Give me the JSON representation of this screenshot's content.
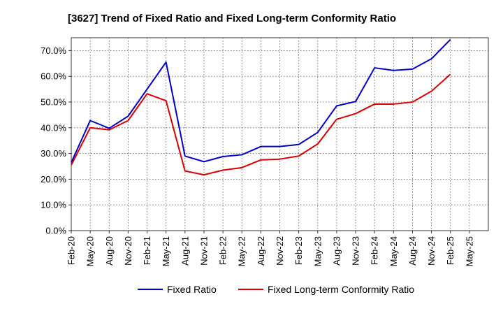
{
  "chart_data": {
    "type": "line",
    "title": "[3627]  Trend of Fixed Ratio and Fixed Long-term Conformity Ratio",
    "xlabel": "",
    "ylabel": "",
    "ylim": [
      0,
      75
    ],
    "grid": true,
    "legend_position": "bottom",
    "x_tick_labels": [
      "Feb-20",
      "May-20",
      "Aug-20",
      "Nov-20",
      "Feb-21",
      "May-21",
      "Aug-21",
      "Nov-21",
      "Feb-22",
      "May-22",
      "Aug-22",
      "Nov-22",
      "Feb-23",
      "May-23",
      "Aug-23",
      "Nov-23",
      "Feb-24",
      "May-24",
      "Aug-24",
      "Nov-24",
      "Feb-25",
      "May-25"
    ],
    "y_ticks": [
      0,
      10,
      20,
      30,
      40,
      50,
      60,
      70
    ],
    "y_tick_labels": [
      "0.0%",
      "10.0%",
      "20.0%",
      "30.0%",
      "40.0%",
      "50.0%",
      "60.0%",
      "70.0%"
    ],
    "x": [
      "Feb-20",
      "May-20",
      "Aug-20",
      "Nov-20",
      "Feb-21",
      "May-21",
      "Aug-21",
      "Nov-21",
      "Feb-22",
      "May-22",
      "Aug-22",
      "Nov-22",
      "Feb-23",
      "May-23",
      "Aug-23",
      "Nov-23",
      "Feb-24",
      "May-24",
      "Aug-24",
      "Nov-24",
      "Feb-25"
    ],
    "series": [
      {
        "name": "Fixed Ratio",
        "color": "#0000cc",
        "values": [
          26.5,
          42.8,
          39.8,
          44.5,
          55.0,
          65.5,
          29.0,
          26.8,
          28.8,
          29.5,
          32.7,
          32.7,
          33.5,
          38.2,
          48.5,
          50.2,
          63.3,
          62.3,
          62.8,
          66.8,
          74.3
        ]
      },
      {
        "name": "Fixed Long-term Conformity Ratio",
        "color": "#dd0000",
        "values": [
          25.5,
          40.0,
          39.2,
          42.8,
          53.2,
          50.5,
          23.2,
          21.7,
          23.5,
          24.5,
          27.5,
          27.8,
          29.0,
          33.7,
          43.3,
          45.5,
          49.2,
          49.2,
          50.0,
          54.2,
          60.8
        ]
      }
    ]
  }
}
